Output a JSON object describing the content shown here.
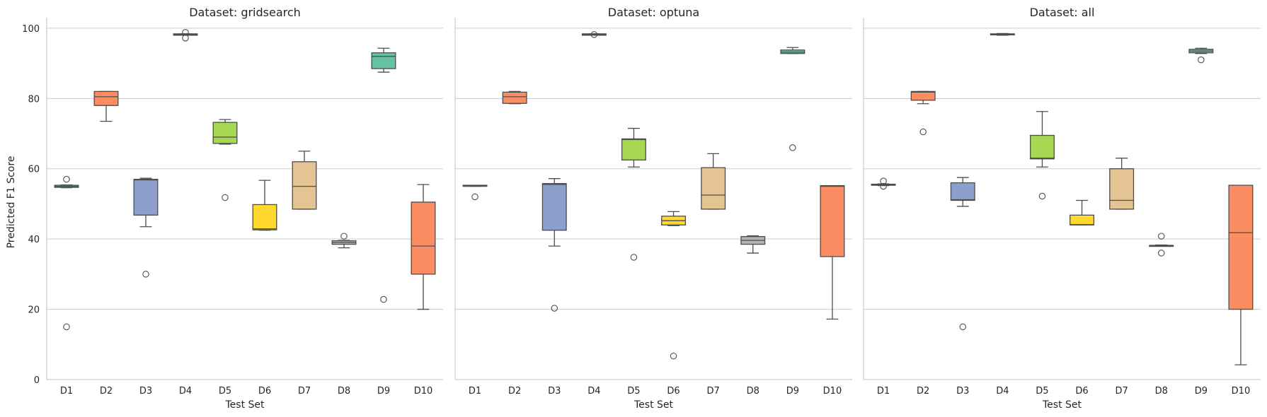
{
  "chart_data": {
    "type": "box",
    "ylabel": "Predicted F1 Score",
    "xlabel": "Test Set",
    "ylim": [
      0,
      103
    ],
    "yticks": [
      0,
      20,
      40,
      60,
      80,
      100
    ],
    "grid": "horizontal",
    "categories": [
      "D1",
      "D2",
      "D3",
      "D4",
      "D5",
      "D6",
      "D7",
      "D8",
      "D9",
      "D10"
    ],
    "palette": [
      "#66c2a5",
      "#fc8d62",
      "#8da0cb",
      "#e78ac3",
      "#a6d854",
      "#ffd92f",
      "#e5c494",
      "#b3b3b3",
      "#66c2a5",
      "#fc8d62"
    ],
    "panels": [
      {
        "title": "Dataset: gridsearch",
        "boxes": [
          {
            "q1": 54.7,
            "median": 55.0,
            "q3": 55.3,
            "whislo": 54.6,
            "whishi": 55.4,
            "fliers": [
              57.0,
              15.0
            ]
          },
          {
            "q1": 78.0,
            "median": 80.5,
            "q3": 82.0,
            "whislo": 73.5,
            "whishi": 82.0,
            "fliers": []
          },
          {
            "q1": 46.8,
            "median": 56.8,
            "q3": 57.0,
            "whislo": 43.5,
            "whishi": 57.3,
            "fliers": [
              30.0
            ]
          },
          {
            "q1": 98.0,
            "median": 98.2,
            "q3": 98.4,
            "whislo": 98.0,
            "whishi": 98.4,
            "fliers": [
              98.8,
              97.2
            ]
          },
          {
            "q1": 67.2,
            "median": 69.0,
            "q3": 73.2,
            "whislo": 67.0,
            "whishi": 74.0,
            "fliers": [
              51.8
            ]
          },
          {
            "q1": 42.6,
            "median": 42.9,
            "q3": 49.8,
            "whislo": 42.5,
            "whishi": 56.7,
            "fliers": []
          },
          {
            "q1": 48.5,
            "median": 55.0,
            "q3": 62.0,
            "whislo": 48.5,
            "whishi": 65.0,
            "fliers": []
          },
          {
            "q1": 38.5,
            "median": 39.0,
            "q3": 39.5,
            "whislo": 37.5,
            "whishi": 39.6,
            "fliers": [
              40.8
            ]
          },
          {
            "q1": 88.5,
            "median": 92.0,
            "q3": 93.0,
            "whislo": 87.5,
            "whishi": 94.3,
            "fliers": [
              22.8
            ]
          },
          {
            "q1": 30.0,
            "median": 38.0,
            "q3": 50.5,
            "whislo": 20.0,
            "whishi": 55.5,
            "fliers": []
          }
        ]
      },
      {
        "title": "Dataset: optuna",
        "boxes": [
          {
            "q1": 55.0,
            "median": 55.2,
            "q3": 55.3,
            "whislo": 55.0,
            "whishi": 55.3,
            "fliers": [
              52.0
            ]
          },
          {
            "q1": 78.6,
            "median": 80.5,
            "q3": 81.8,
            "whislo": 78.5,
            "whishi": 82.0,
            "fliers": []
          },
          {
            "q1": 42.5,
            "median": 55.5,
            "q3": 55.8,
            "whislo": 38.0,
            "whishi": 57.2,
            "fliers": [
              20.3
            ]
          },
          {
            "q1": 98.0,
            "median": 98.2,
            "q3": 98.4,
            "whislo": 98.0,
            "whishi": 98.4,
            "fliers": [
              98.2
            ]
          },
          {
            "q1": 62.5,
            "median": 68.3,
            "q3": 68.5,
            "whislo": 60.5,
            "whishi": 71.5,
            "fliers": [
              34.8
            ]
          },
          {
            "q1": 44.0,
            "median": 45.2,
            "q3": 46.5,
            "whislo": 43.8,
            "whishi": 47.8,
            "fliers": [
              6.7
            ]
          },
          {
            "q1": 48.5,
            "median": 52.5,
            "q3": 60.3,
            "whislo": 48.5,
            "whishi": 64.3,
            "fliers": []
          },
          {
            "q1": 38.5,
            "median": 39.6,
            "q3": 40.7,
            "whislo": 36.0,
            "whishi": 40.9,
            "fliers": []
          },
          {
            "q1": 92.8,
            "median": 93.2,
            "q3": 93.8,
            "whislo": 92.8,
            "whishi": 94.5,
            "fliers": [
              66.0
            ]
          },
          {
            "q1": 35.0,
            "median": 55.0,
            "q3": 55.2,
            "whislo": 17.2,
            "whishi": 55.2,
            "fliers": []
          }
        ]
      },
      {
        "title": "Dataset: all",
        "boxes": [
          {
            "q1": 55.3,
            "median": 55.5,
            "q3": 55.6,
            "whislo": 55.2,
            "whishi": 55.7,
            "fliers": [
              56.5,
              55.0
            ]
          },
          {
            "q1": 79.5,
            "median": 81.8,
            "q3": 82.0,
            "whislo": 78.5,
            "whishi": 82.0,
            "fliers": [
              70.5
            ]
          },
          {
            "q1": 51.0,
            "median": 51.2,
            "q3": 56.0,
            "whislo": 49.3,
            "whishi": 57.5,
            "fliers": [
              15.0
            ]
          },
          {
            "q1": 98.1,
            "median": 98.2,
            "q3": 98.4,
            "whislo": 98.0,
            "whishi": 98.5,
            "fliers": []
          },
          {
            "q1": 62.8,
            "median": 63.0,
            "q3": 69.5,
            "whislo": 60.5,
            "whishi": 76.3,
            "fliers": [
              52.2
            ]
          },
          {
            "q1": 44.0,
            "median": 44.1,
            "q3": 46.8,
            "whislo": 44.0,
            "whishi": 51.0,
            "fliers": []
          },
          {
            "q1": 48.5,
            "median": 51.0,
            "q3": 60.0,
            "whislo": 48.5,
            "whishi": 63.0,
            "fliers": []
          },
          {
            "q1": 38.0,
            "median": 38.1,
            "q3": 38.2,
            "whislo": 38.0,
            "whishi": 38.3,
            "fliers": [
              40.8,
              36.0
            ]
          },
          {
            "q1": 93.0,
            "median": 93.5,
            "q3": 94.0,
            "whislo": 92.8,
            "whishi": 94.3,
            "fliers": [
              91.0
            ]
          },
          {
            "q1": 20.0,
            "median": 41.8,
            "q3": 55.3,
            "whislo": 4.2,
            "whishi": 55.3,
            "fliers": []
          }
        ]
      }
    ]
  }
}
